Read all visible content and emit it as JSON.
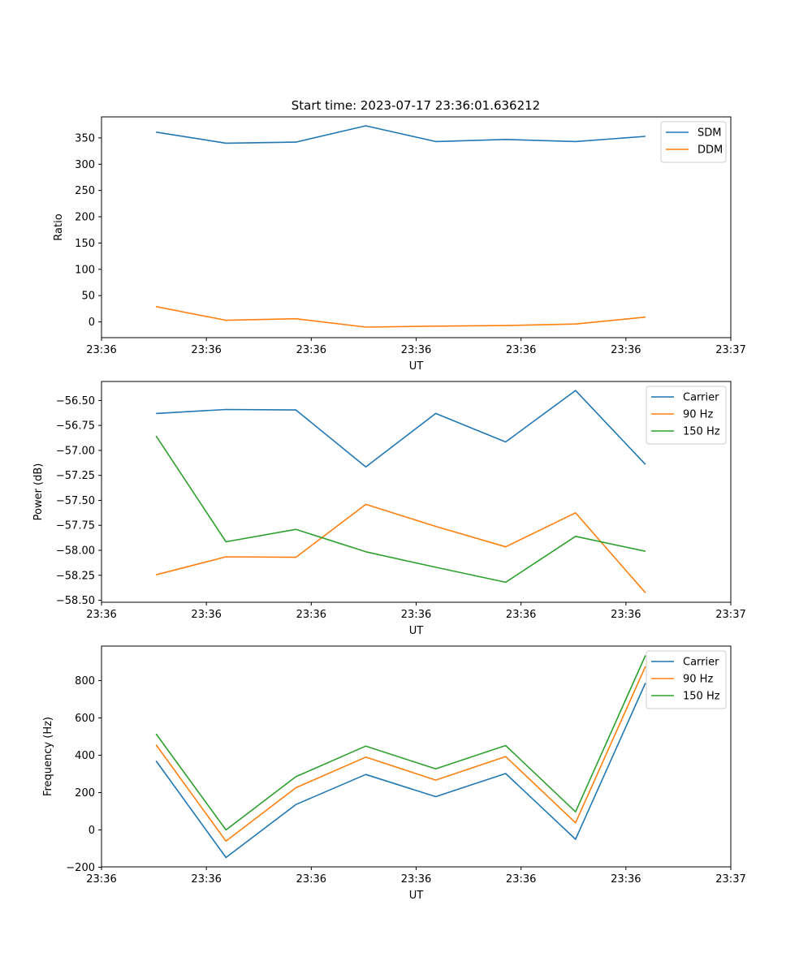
{
  "figure": {
    "title": "Start time: 2023-07-17 23:36:01.636212"
  },
  "chart_data": [
    {
      "type": "line",
      "title": "Start time: 2023-07-17 23:36:01.636212",
      "xlabel": "UT",
      "ylabel": "Ratio",
      "x": [
        1,
        2,
        3,
        4,
        5,
        6,
        7,
        8
      ],
      "xlim": [
        0.22,
        9.22
      ],
      "xticks": [
        0.22,
        1.72,
        3.22,
        4.72,
        6.22,
        7.72,
        9.22
      ],
      "xtick_labels": [
        "23:36",
        "23:36",
        "23:36",
        "23:36",
        "23:36",
        "23:36",
        "23:37"
      ],
      "ylim": [
        -30,
        390
      ],
      "yticks": [
        0,
        50,
        100,
        150,
        200,
        250,
        300,
        350
      ],
      "ytick_labels": [
        "0",
        "50",
        "100",
        "150",
        "200",
        "250",
        "300",
        "350"
      ],
      "legend_loc": "top-right",
      "series": [
        {
          "name": "SDM",
          "color": "#1f77b4",
          "values": [
            361,
            340,
            342,
            373,
            343,
            347,
            343,
            353
          ]
        },
        {
          "name": "DDM",
          "color": "#ff7f0e",
          "values": [
            29,
            3,
            6,
            -10,
            -8,
            -7,
            -4,
            9
          ]
        }
      ]
    },
    {
      "type": "line",
      "title": "",
      "xlabel": "UT",
      "ylabel": "Power (dB)",
      "x": [
        1,
        2,
        3,
        4,
        5,
        6,
        7,
        8
      ],
      "xlim": [
        0.22,
        9.22
      ],
      "xticks": [
        0.22,
        1.72,
        3.22,
        4.72,
        6.22,
        7.72,
        9.22
      ],
      "xtick_labels": [
        "23:36",
        "23:36",
        "23:36",
        "23:36",
        "23:36",
        "23:36",
        "23:37"
      ],
      "ylim": [
        -58.52,
        -56.31
      ],
      "yticks": [
        -58.5,
        -58.25,
        -58.0,
        -57.75,
        -57.5,
        -57.25,
        -57.0,
        -56.75,
        -56.5
      ],
      "ytick_labels": [
        "−58.50",
        "−58.25",
        "−58.00",
        "−57.75",
        "−57.50",
        "−57.25",
        "−57.00",
        "−56.75",
        "−56.50"
      ],
      "legend_loc": "top-right",
      "series": [
        {
          "name": "Carrier",
          "color": "#1f77b4",
          "values": [
            -56.63,
            -56.59,
            -56.595,
            -57.165,
            -56.63,
            -56.915,
            -56.4,
            -57.14
          ]
        },
        {
          "name": "90 Hz",
          "color": "#ff7f0e",
          "values": [
            -58.245,
            -58.065,
            -58.07,
            -57.54,
            -57.76,
            -57.965,
            -57.625,
            -58.425
          ]
        },
        {
          "name": "150 Hz",
          "color": "#2ca02c",
          "values": [
            -56.855,
            -57.915,
            -57.79,
            -58.015,
            -58.17,
            -58.32,
            -57.86,
            -58.01
          ]
        }
      ]
    },
    {
      "type": "line",
      "title": "",
      "xlabel": "UT",
      "ylabel": "Frequency (Hz)",
      "x": [
        1,
        2,
        3,
        4,
        5,
        6,
        7,
        8
      ],
      "xlim": [
        0.22,
        9.22
      ],
      "xticks": [
        0.22,
        1.72,
        3.22,
        4.72,
        6.22,
        7.72,
        9.22
      ],
      "xtick_labels": [
        "23:36",
        "23:36",
        "23:36",
        "23:36",
        "23:36",
        "23:36",
        "23:37"
      ],
      "ylim": [
        -198,
        985
      ],
      "yticks": [
        -200,
        0,
        200,
        400,
        600,
        800
      ],
      "ytick_labels": [
        "−200",
        "0",
        "200",
        "400",
        "600",
        "800"
      ],
      "legend_loc": "top-right",
      "series": [
        {
          "name": "Carrier",
          "color": "#1f77b4",
          "values": [
            370,
            -148,
            136,
            297,
            178,
            302,
            -50,
            787
          ]
        },
        {
          "name": "90 Hz",
          "color": "#ff7f0e",
          "values": [
            456,
            -60,
            226,
            390,
            267,
            393,
            38,
            876
          ]
        },
        {
          "name": "150 Hz",
          "color": "#2ca02c",
          "values": [
            515,
            0,
            285,
            449,
            327,
            452,
            97,
            935
          ]
        }
      ]
    }
  ]
}
